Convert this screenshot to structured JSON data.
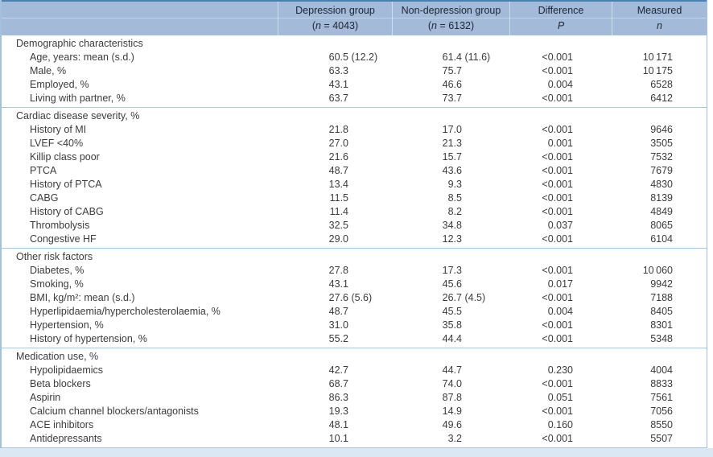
{
  "colors": {
    "header_bg": "#a3bad8",
    "header_top": "#4d7fae",
    "header_text": "#1c2636",
    "side_border": "#a3c1dc",
    "divider": "#aac8e2",
    "strip_bg": "#dbe8f3",
    "text": "#3b3b3b"
  },
  "table": {
    "header": {
      "depression": {
        "title": "Depression group",
        "n_open": "(",
        "n_label": "n",
        "n_rest": " = 4043)"
      },
      "nondepression": {
        "title": "Non-depression group",
        "n_open": "(",
        "n_label": "n",
        "n_rest": " = 6132)"
      },
      "difference": {
        "title": "Difference",
        "sub": "P"
      },
      "measured": {
        "title": "Measured",
        "sub": "n"
      }
    },
    "sections": [
      {
        "title": "Demographic characteristics",
        "rows": [
          {
            "label": "Age, years: mean (s.d.)",
            "dep": "60.5",
            "dep_sd": " (12.2)",
            "nondep": "61.4",
            "nondep_sd": " (11.6)",
            "p": "<0.001",
            "n": "10 171"
          },
          {
            "label": "Male, %",
            "dep": "63.3",
            "dep_sd": "",
            "nondep": "75.7",
            "nondep_sd": "",
            "p": "<0.001",
            "n": "10 175"
          },
          {
            "label": "Employed, %",
            "dep": "43.1",
            "dep_sd": "",
            "nondep": "46.6",
            "nondep_sd": "",
            "p": "0.004",
            "n": "6528"
          },
          {
            "label": "Living with partner, %",
            "dep": "63.7",
            "dep_sd": "",
            "nondep": "73.7",
            "nondep_sd": "",
            "p": "<0.001",
            "n": "6412"
          }
        ]
      },
      {
        "title": "Cardiac disease severity, %",
        "rows": [
          {
            "label": "History of MI",
            "dep": "21.8",
            "dep_sd": "",
            "nondep": "17.0",
            "nondep_sd": "",
            "p": "<0.001",
            "n": "9646"
          },
          {
            "label": "LVEF <40%",
            "dep": "27.0",
            "dep_sd": "",
            "nondep": "21.3",
            "nondep_sd": "",
            "p": "0.001",
            "n": "3505"
          },
          {
            "label": "Killip class poor",
            "dep": "21.6",
            "dep_sd": "",
            "nondep": "15.7",
            "nondep_sd": "",
            "p": "<0.001",
            "n": "7532"
          },
          {
            "label": "PTCA",
            "dep": "48.7",
            "dep_sd": "",
            "nondep": "43.6",
            "nondep_sd": "",
            "p": "<0.001",
            "n": "7679"
          },
          {
            "label": "History of PTCA",
            "dep": "13.4",
            "dep_sd": "",
            "nondep": "9.3",
            "nondep_sd": "",
            "p": "<0.001",
            "n": "4830"
          },
          {
            "label": "CABG",
            "dep": "11.5",
            "dep_sd": "",
            "nondep": "8.5",
            "nondep_sd": "",
            "p": "<0.001",
            "n": "8139"
          },
          {
            "label": "History of CABG",
            "dep": "11.4",
            "dep_sd": "",
            "nondep": "8.2",
            "nondep_sd": "",
            "p": "<0.001",
            "n": "4849"
          },
          {
            "label": "Thrombolysis",
            "dep": "32.5",
            "dep_sd": "",
            "nondep": "34.8",
            "nondep_sd": "",
            "p": "0.037",
            "n": "8065"
          },
          {
            "label": "Congestive HF",
            "dep": "29.0",
            "dep_sd": "",
            "nondep": "12.3",
            "nondep_sd": "",
            "p": "<0.001",
            "n": "6104"
          }
        ]
      },
      {
        "title": "Other risk factors",
        "rows": [
          {
            "label": "Diabetes, %",
            "dep": "27.8",
            "dep_sd": "",
            "nondep": "17.3",
            "nondep_sd": "",
            "p": "<0.001",
            "n": "10 060"
          },
          {
            "label": "Smoking, %",
            "dep": "43.1",
            "dep_sd": "",
            "nondep": "45.6",
            "nondep_sd": "",
            "p": "0.017",
            "n": "9942"
          },
          {
            "label": "BMI, kg/m²: mean (s.d.)",
            "dep": "27.6",
            "dep_sd": " (5.6)",
            "nondep": "26.7",
            "nondep_sd": " (4.5)",
            "p": "<0.001",
            "n": "7188"
          },
          {
            "label": "Hyperlipidaemia/hypercholesterolaemia, %",
            "dep": "48.7",
            "dep_sd": "",
            "nondep": "45.5",
            "nondep_sd": "",
            "p": "0.004",
            "n": "8405"
          },
          {
            "label": "Hypertension, %",
            "dep": "31.0",
            "dep_sd": "",
            "nondep": "35.8",
            "nondep_sd": "",
            "p": "<0.001",
            "n": "8301"
          },
          {
            "label": "History of hypertension, %",
            "dep": "55.2",
            "dep_sd": "",
            "nondep": "44.4",
            "nondep_sd": "",
            "p": "<0.001",
            "n": "5348"
          }
        ]
      },
      {
        "title": "Medication use, %",
        "rows": [
          {
            "label": "Hypolipidaemics",
            "dep": "42.7",
            "dep_sd": "",
            "nondep": "44.7",
            "nondep_sd": "",
            "p": "0.230",
            "n": "4004"
          },
          {
            "label": "Beta blockers",
            "dep": "68.7",
            "dep_sd": "",
            "nondep": "74.0",
            "nondep_sd": "",
            "p": "<0.001",
            "n": "8833"
          },
          {
            "label": "Aspirin",
            "dep": "86.3",
            "dep_sd": "",
            "nondep": "87.8",
            "nondep_sd": "",
            "p": "0.051",
            "n": "7561"
          },
          {
            "label": "Calcium channel blockers/antagonists",
            "dep": "19.3",
            "dep_sd": "",
            "nondep": "14.9",
            "nondep_sd": "",
            "p": "<0.001",
            "n": "7056"
          },
          {
            "label": "ACE inhibitors",
            "dep": "48.1",
            "dep_sd": "",
            "nondep": "49.6",
            "nondep_sd": "",
            "p": "0.160",
            "n": "8550"
          },
          {
            "label": "Antidepressants",
            "dep": "10.1",
            "dep_sd": "",
            "nondep": "3.2",
            "nondep_sd": "",
            "p": "<0.001",
            "n": "5507"
          }
        ]
      }
    ]
  }
}
